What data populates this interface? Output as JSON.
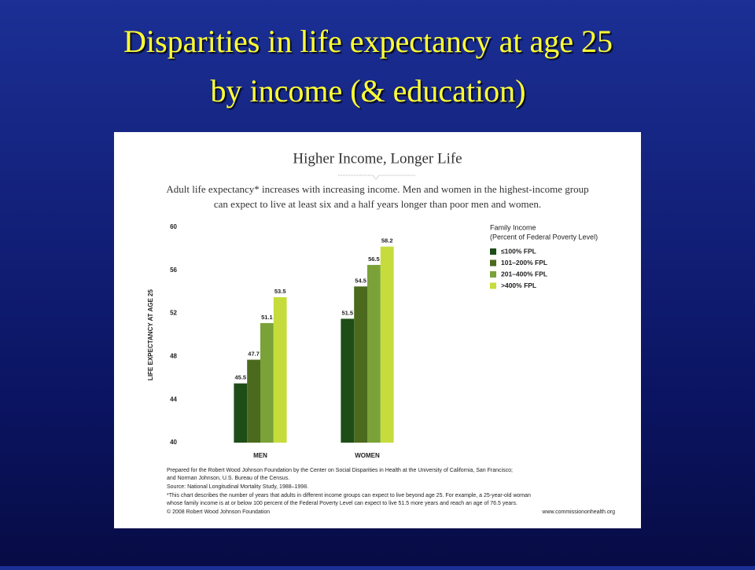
{
  "slide_title": [
    "Disparities in life expectancy at age 25",
    "by income (& education)"
  ],
  "chart_data": {
    "type": "bar",
    "title": "Higher Income, Longer Life",
    "subtitle": [
      "Adult life expectancy* increases with increasing income. Men and women in the highest-income group",
      "can expect to live at least six and a half years longer than poor men and women."
    ],
    "y_label": "LIFE EXPECTANCY AT AGE 25",
    "categories": [
      "MEN",
      "WOMEN"
    ],
    "series": [
      {
        "name": "≤100% FPL",
        "color": "#1e4d17",
        "values": [
          45.5,
          51.5
        ]
      },
      {
        "name": "101–200% FPL",
        "color": "#4b6a1d",
        "values": [
          47.7,
          54.5
        ]
      },
      {
        "name": "201–400% FPL",
        "color": "#7aa239",
        "values": [
          51.1,
          56.5
        ]
      },
      {
        "name": ">400% FPL",
        "color": "#c6dc3c",
        "values": [
          53.5,
          58.2
        ]
      }
    ],
    "ylim": [
      40,
      60
    ],
    "yticks": [
      40,
      44,
      48,
      52,
      56,
      60
    ],
    "grid": false,
    "legend_title": [
      "Family Income",
      "(Percent of Federal Poverty Level)"
    ],
    "notes": [
      "Prepared for the Robert Wood Johnson Foundation by the Center on Social Disparities in Health at the University of California, San Francisco;",
      "and Norman Johnson, U.S. Bureau of the Census.",
      "Source: National Longitudinal Mortality Study, 1988–1998.",
      "*This chart describes the number of years that adults in different income groups can expect to live beyond age 25. For example, a 25-year-old woman",
      "whose family income is at or below 100 percent of the Federal Poverty Level can expect to live 51.5 more years and reach an age of 76.5 years.",
      "© 2008 Robert Wood Johnson Foundation"
    ],
    "url": "www.commissiononhealth.org"
  }
}
